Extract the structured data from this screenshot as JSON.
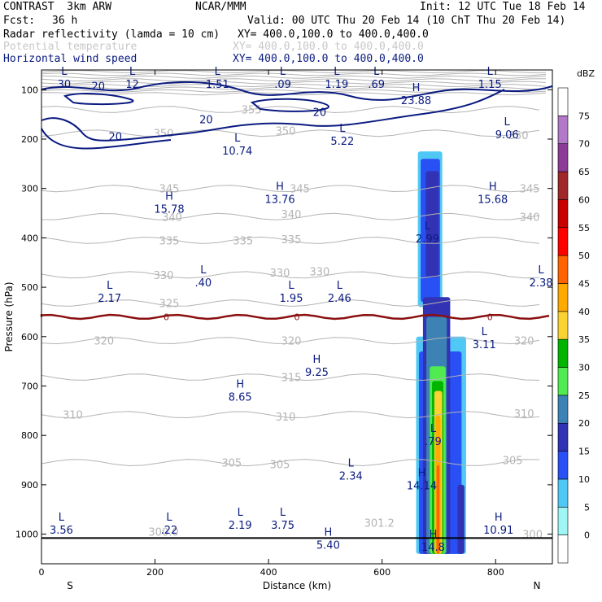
{
  "header": {
    "model": "CONTRAST  3km ARW",
    "org": "NCAR/MMM",
    "init": "Init: 12 UTC Tue 18 Feb 14",
    "fcst_label": "Fcst:",
    "fcst_value": "36 h",
    "valid": "Valid: 00 UTC Thu 20 Feb 14 (10 ChT Thu 20 Feb 14)",
    "field1": "Radar reflectivity (lamda = 10 cm)",
    "field1_xy": "XY= 400.0,100.0 to 400.0,400.0",
    "field2": "Potential temperature",
    "field2_xy": "XY= 400.0,100.0 to 400.0,400.0",
    "field3": "Horizontal wind speed",
    "field3_xy": "XY= 400.0,100.0 to 400.0,400.0"
  },
  "colors": {
    "wind_contour": "#0a1a80",
    "theta_contour": "#b4b4b4",
    "freezing_line": "#8b1010"
  },
  "chart_data": {
    "type": "contour-cross-section",
    "xlabel": "Distance (km)",
    "ylabel": "Pressure (hPa)",
    "xlim": [
      0,
      900
    ],
    "ylim": [
      1060,
      60
    ],
    "x_ticks": [
      0,
      200,
      400,
      600,
      800
    ],
    "y_ticks": [
      100,
      200,
      300,
      400,
      500,
      600,
      700,
      800,
      900,
      1000
    ],
    "x_end_labels": {
      "left": "S",
      "right": "N"
    },
    "colorbar": {
      "units": "dBZ",
      "levels": [
        0,
        5,
        10,
        15,
        20,
        25,
        30,
        35,
        40,
        45,
        50,
        55,
        60,
        65,
        70,
        75
      ],
      "colors": [
        "#ffffff",
        "#a0f5f5",
        "#50c8f5",
        "#2850f5",
        "#3232b4",
        "#3c82b4",
        "#50eb50",
        "#00b400",
        "#fad232",
        "#ffaa00",
        "#ff6400",
        "#ff0000",
        "#c80000",
        "#a02828",
        "#8c3c96",
        "#b478c8",
        "#ffffff"
      ]
    },
    "theta_contours": [
      {
        "label": "355",
        "x": 370,
        "p": 140,
        "x2": 860,
        "p2": 140
      },
      {
        "label": "350",
        "x": 215,
        "p": 188
      },
      {
        "label": "350",
        "x": 430,
        "p": 183
      },
      {
        "label": "350",
        "x": 840,
        "p": 192
      },
      {
        "label": "345",
        "x": 225,
        "p": 300
      },
      {
        "label": "345",
        "x": 455,
        "p": 300
      },
      {
        "label": "345",
        "x": 860,
        "p": 300
      },
      {
        "label": "340",
        "x": 230,
        "p": 357
      },
      {
        "label": "340",
        "x": 440,
        "p": 352
      },
      {
        "label": "340",
        "x": 860,
        "p": 357
      },
      {
        "label": "335",
        "x": 225,
        "p": 405
      },
      {
        "label": "335",
        "x": 355,
        "p": 405
      },
      {
        "label": "335",
        "x": 440,
        "p": 403
      },
      {
        "label": "330",
        "x": 215,
        "p": 475
      },
      {
        "label": "330",
        "x": 420,
        "p": 470
      },
      {
        "label": "330",
        "x": 490,
        "p": 468
      },
      {
        "label": "325",
        "x": 225,
        "p": 532
      },
      {
        "label": "320",
        "x": 110,
        "p": 608
      },
      {
        "label": "320",
        "x": 440,
        "p": 608
      },
      {
        "label": "320",
        "x": 850,
        "p": 608
      },
      {
        "label": "315",
        "x": 440,
        "p": 682
      },
      {
        "label": "310",
        "x": 55,
        "p": 758
      },
      {
        "label": "310",
        "x": 430,
        "p": 762
      },
      {
        "label": "310",
        "x": 850,
        "p": 755
      },
      {
        "label": "305",
        "x": 335,
        "p": 855
      },
      {
        "label": "305",
        "x": 420,
        "p": 858
      },
      {
        "label": "305",
        "x": 830,
        "p": 850
      },
      {
        "label": "300.0",
        "x": 215,
        "p": 995
      },
      {
        "label": "301.2",
        "x": 595,
        "p": 977
      },
      {
        "label": "300",
        "x": 865,
        "p": 1000
      }
    ],
    "wind_contours": [
      {
        "label": "20",
        "x": 100,
        "p": 92
      },
      {
        "label": "20",
        "x": 290,
        "p": 160
      },
      {
        "label": "20",
        "x": 130,
        "p": 194
      },
      {
        "label": "20",
        "x": 490,
        "p": 145
      }
    ],
    "freezing_level": {
      "label": "0",
      "p": 560
    },
    "extrema": [
      {
        "type": "L",
        "value": "30",
        "x": 40,
        "p": 70
      },
      {
        "type": "L",
        "value": "12",
        "x": 160,
        "p": 70
      },
      {
        "type": "L",
        "value": "1.51",
        "x": 310,
        "p": 70
      },
      {
        "type": "L",
        "value": ".09",
        "x": 425,
        "p": 70
      },
      {
        "type": "L",
        "value": "1.19",
        "x": 520,
        "p": 70
      },
      {
        "type": "L",
        "value": ".69",
        "x": 590,
        "p": 70
      },
      {
        "type": "L",
        "value": "1.15",
        "x": 790,
        "p": 70
      },
      {
        "type": "H",
        "value": "23.88",
        "x": 660,
        "p": 103
      },
      {
        "type": "L",
        "value": "9.06",
        "x": 820,
        "p": 172
      },
      {
        "type": "L",
        "value": "10.74",
        "x": 345,
        "p": 205
      },
      {
        "type": "L",
        "value": "5.22",
        "x": 530,
        "p": 185
      },
      {
        "type": "H",
        "value": "15.78",
        "x": 225,
        "p": 323
      },
      {
        "type": "H",
        "value": "13.76",
        "x": 420,
        "p": 303
      },
      {
        "type": "H",
        "value": "15.68",
        "x": 795,
        "p": 303
      },
      {
        "type": "L",
        "value": "2.99",
        "x": 680,
        "p": 383
      },
      {
        "type": "L",
        "value": ".40",
        "x": 285,
        "p": 472
      },
      {
        "type": "L",
        "value": "2.38",
        "x": 880,
        "p": 472
      },
      {
        "type": "L",
        "value": "2.17",
        "x": 120,
        "p": 503
      },
      {
        "type": "L",
        "value": "1.95",
        "x": 440,
        "p": 503
      },
      {
        "type": "L",
        "value": "2.46",
        "x": 525,
        "p": 503
      },
      {
        "type": "L",
        "value": "3.11",
        "x": 780,
        "p": 597
      },
      {
        "type": "H",
        "value": "9.25",
        "x": 485,
        "p": 653
      },
      {
        "type": "H",
        "value": "8.65",
        "x": 350,
        "p": 703
      },
      {
        "type": "L",
        "value": ".79",
        "x": 690,
        "p": 793
      },
      {
        "type": "L",
        "value": "2.34",
        "x": 545,
        "p": 863
      },
      {
        "type": "H",
        "value": "14.14",
        "x": 670,
        "p": 883
      },
      {
        "type": "L",
        "value": "3.56",
        "x": 35,
        "p": 973
      },
      {
        "type": "L",
        "value": ".22",
        "x": 225,
        "p": 973
      },
      {
        "type": "L",
        "value": "2.19",
        "x": 350,
        "p": 963
      },
      {
        "type": "L",
        "value": "3.75",
        "x": 425,
        "p": 963
      },
      {
        "type": "H",
        "value": "10.91",
        "x": 805,
        "p": 973
      },
      {
        "type": "H",
        "value": "5.40",
        "x": 505,
        "p": 1003
      },
      {
        "type": "H",
        "value": "14.8",
        "x": 690,
        "p": 1007
      }
    ]
  }
}
